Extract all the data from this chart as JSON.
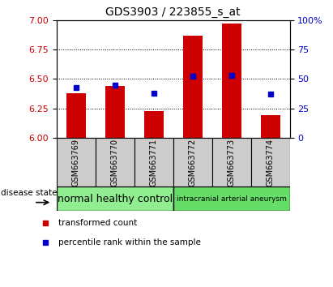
{
  "title": "GDS3903 / 223855_s_at",
  "samples": [
    "GSM663769",
    "GSM663770",
    "GSM663771",
    "GSM663772",
    "GSM663773",
    "GSM663774"
  ],
  "bar_values": [
    6.38,
    6.44,
    6.23,
    6.87,
    6.97,
    6.19
  ],
  "percentile_values": [
    43,
    45,
    38,
    52,
    53,
    37
  ],
  "ylim_left": [
    6.0,
    7.0
  ],
  "ylim_right": [
    0,
    100
  ],
  "yticks_left": [
    6.0,
    6.25,
    6.5,
    6.75,
    7.0
  ],
  "yticks_right": [
    0,
    25,
    50,
    75,
    100
  ],
  "bar_color": "#cc0000",
  "dot_color": "#0000cc",
  "bar_bottom": 6.0,
  "groups": [
    {
      "label": "normal healthy control",
      "indices": [
        0,
        1,
        2
      ],
      "color": "#90ee90",
      "fontsize": 9
    },
    {
      "label": "intracranial arterial aneurysm",
      "indices": [
        3,
        4,
        5
      ],
      "color": "#66dd66",
      "fontsize": 6.5
    }
  ],
  "disease_state_label": "disease state",
  "legend_items": [
    {
      "label": "transformed count",
      "color": "#cc0000"
    },
    {
      "label": "percentile rank within the sample",
      "color": "#0000cc"
    }
  ],
  "tick_label_color_left": "#cc0000",
  "tick_label_color_right": "#0000cc",
  "background_xtick": "#cccccc",
  "title_fontsize": 10
}
